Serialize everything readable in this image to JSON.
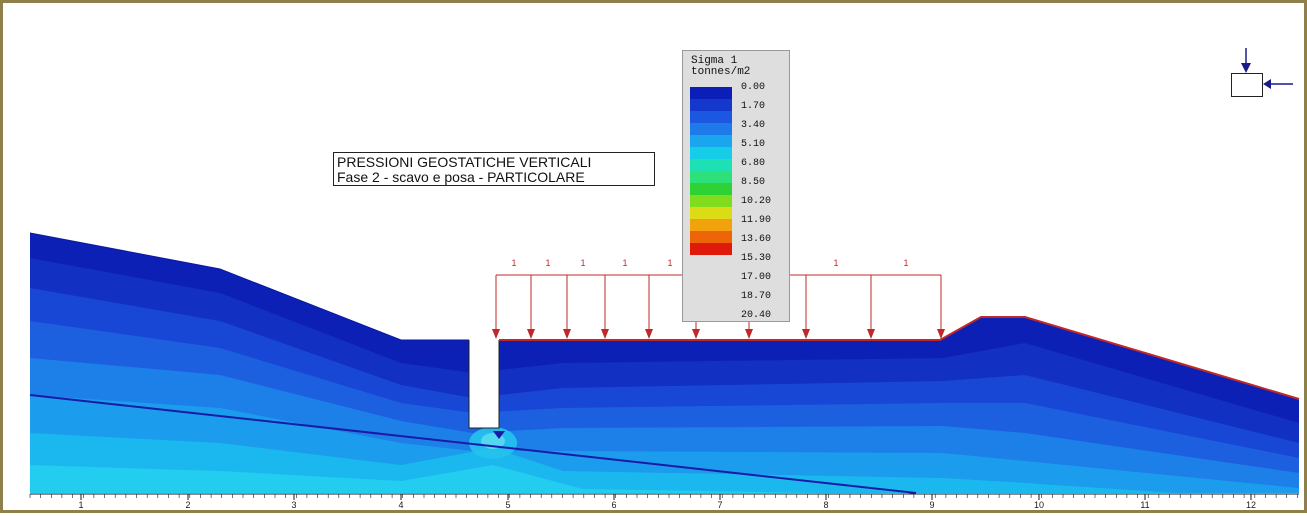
{
  "title": {
    "line1": "PRESSIONI GEOSTATICHE VERTICALI",
    "line2": "Fase 2 - scavo e posa - PARTICOLARE"
  },
  "legend": {
    "title_line1": "Sigma 1",
    "title_line2": "tonnes/m2",
    "values": [
      "0.00",
      "1.70",
      "3.40",
      "5.10",
      "6.80",
      "8.50",
      "10.20",
      "11.90",
      "13.60",
      "15.30",
      "17.00",
      "18.70",
      "20.40"
    ],
    "colors": [
      "#0b1fb8",
      "#1538cc",
      "#1b57e0",
      "#1d7ae8",
      "#19a6ee",
      "#15cde7",
      "#1ee0b5",
      "#2ee07a",
      "#2fd234",
      "#82dc1e",
      "#dcdc16",
      "#f2a20c",
      "#ee6409",
      "#e01a0a"
    ]
  },
  "load_labels": [
    "1",
    "1",
    "1",
    "1",
    "1",
    "1",
    "1",
    "1",
    "1",
    "1",
    "1",
    "1"
  ],
  "axis": {
    "ticks": [
      "1",
      "2",
      "3",
      "4",
      "5",
      "6",
      "7",
      "8",
      "9",
      "10",
      "11",
      "12"
    ]
  },
  "icons": {
    "orientation": "load-direction-icon"
  },
  "colors": {
    "load": "#c0282a",
    "axis": "#1a1a1a",
    "frame": "#8f7f4a",
    "water_table": "#1a1aa8"
  }
}
